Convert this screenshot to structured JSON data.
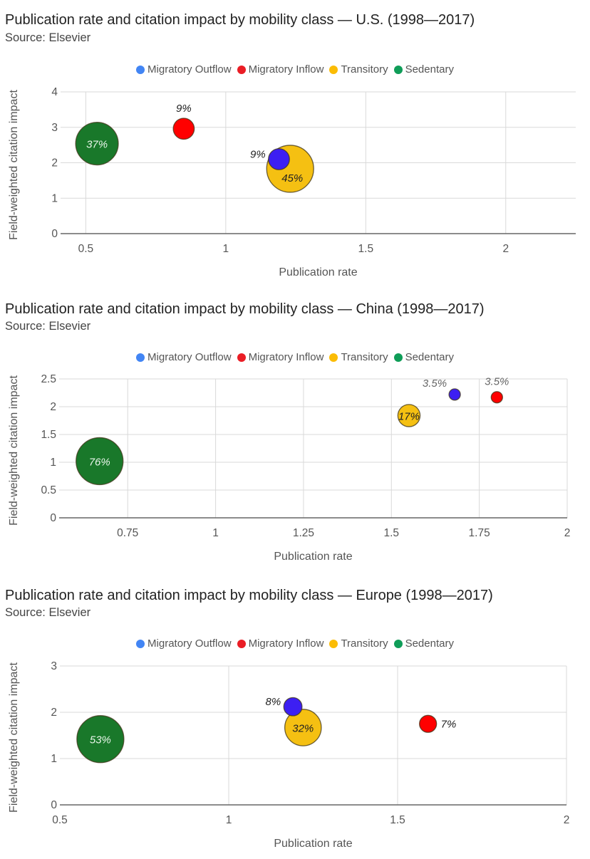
{
  "legend_colors": {
    "Migratory Outflow": "#4285f4",
    "Migratory Inflow": "#ea1d25",
    "Transitory": "#fbbc04",
    "Sedentary": "#0f9d58"
  },
  "bubble_colors": {
    "Migratory Outflow": "#3d1ff2",
    "Migratory Inflow": "#ff0000",
    "Transitory": "#f5c012",
    "Sedentary": "#19782a"
  },
  "chart_data": [
    {
      "type": "scatter",
      "subtype": "bubble",
      "title": "Publication rate and citation impact by mobility class — U.S. (1998—2017)",
      "subtitle": "Source: Elsevier",
      "xlabel": "Publication rate",
      "ylabel": "Field-weighted citation impact",
      "legend": [
        "Migratory Outflow",
        "Migratory Inflow",
        "Transitory",
        "Sedentary"
      ],
      "legend_position": "top",
      "grid": true,
      "xlim": [
        0.41,
        2.25
      ],
      "ylim": [
        0,
        4
      ],
      "xticks": [
        0.5,
        1,
        1.5,
        2
      ],
      "xtick_labels": [
        "0.5",
        "1",
        "1.5",
        "2"
      ],
      "yticks": [
        0,
        1,
        2,
        3,
        4
      ],
      "ytick_labels": [
        "0",
        "1",
        "2",
        "3",
        "4"
      ],
      "series": [
        {
          "name": "Sedentary",
          "x": 0.54,
          "y": 2.54,
          "share": 37,
          "label": "37%",
          "label_pos": "center",
          "label_color": "#e8f5e9"
        },
        {
          "name": "Migratory Inflow",
          "x": 0.85,
          "y": 2.96,
          "share": 9,
          "label": "9%",
          "label_pos": "top",
          "label_color": "#222222"
        },
        {
          "name": "Transitory",
          "x": 1.23,
          "y": 1.83,
          "share": 45,
          "label": "45%",
          "label_pos": "center-low",
          "label_color": "#222222"
        },
        {
          "name": "Migratory Outflow",
          "x": 1.19,
          "y": 2.1,
          "share": 9,
          "label": "9%",
          "label_pos": "left",
          "label_color": "#222222"
        }
      ]
    },
    {
      "type": "scatter",
      "subtype": "bubble",
      "title": "Publication rate and citation impact by mobility class — China (1998—2017)",
      "subtitle": "Source: Elsevier",
      "xlabel": "Publication rate",
      "ylabel": "Field-weighted citation impact",
      "legend": [
        "Migratory Outflow",
        "Migratory Inflow",
        "Transitory",
        "Sedentary"
      ],
      "legend_position": "top",
      "grid": true,
      "xlim": [
        0.555,
        2.0
      ],
      "ylim": [
        0,
        2.5
      ],
      "xticks": [
        0.75,
        1,
        1.25,
        1.5,
        1.75,
        2
      ],
      "xtick_labels": [
        "0.75",
        "1",
        "1.25",
        "1.5",
        "1.75",
        "2"
      ],
      "yticks": [
        0,
        0.5,
        1,
        1.5,
        2,
        2.5
      ],
      "ytick_labels": [
        "0",
        "0.5",
        "1",
        "1.5",
        "2",
        "2.5"
      ],
      "series": [
        {
          "name": "Sedentary",
          "x": 0.67,
          "y": 1.02,
          "share": 76,
          "label": "76%",
          "label_pos": "center",
          "label_color": "#e8f5e9"
        },
        {
          "name": "Transitory",
          "x": 1.55,
          "y": 1.84,
          "share": 17,
          "label": "17%",
          "label_pos": "center",
          "label_color": "#222222"
        },
        {
          "name": "Migratory Outflow",
          "x": 1.68,
          "y": 2.22,
          "share": 3.5,
          "label": "3.5%",
          "label_pos": "top-left",
          "label_color": "#666666"
        },
        {
          "name": "Migratory Inflow",
          "x": 1.8,
          "y": 2.17,
          "share": 3.5,
          "label": "3.5%",
          "label_pos": "top",
          "label_color": "#666666"
        }
      ]
    },
    {
      "type": "scatter",
      "subtype": "bubble",
      "title": "Publication rate and citation impact by mobility class — Europe (1998—2017)",
      "subtitle": "Source: Elsevier",
      "xlabel": "Publication rate",
      "ylabel": "Field-weighted citation impact",
      "legend": [
        "Migratory Outflow",
        "Migratory Inflow",
        "Transitory",
        "Sedentary"
      ],
      "legend_position": "top",
      "grid": true,
      "xlim": [
        0.5,
        2.0
      ],
      "ylim": [
        0,
        3
      ],
      "xticks": [
        0.5,
        1,
        1.5,
        2
      ],
      "xtick_labels": [
        "0.5",
        "1",
        "1.5",
        "2"
      ],
      "yticks": [
        0,
        1,
        2,
        3
      ],
      "ytick_labels": [
        "0",
        "1",
        "2",
        "3"
      ],
      "series": [
        {
          "name": "Sedentary",
          "x": 0.62,
          "y": 1.42,
          "share": 53,
          "label": "53%",
          "label_pos": "center",
          "label_color": "#e8f5e9"
        },
        {
          "name": "Transitory",
          "x": 1.22,
          "y": 1.67,
          "share": 32,
          "label": "32%",
          "label_pos": "center",
          "label_color": "#222222"
        },
        {
          "name": "Migratory Outflow",
          "x": 1.19,
          "y": 2.12,
          "share": 8,
          "label": "8%",
          "label_pos": "left",
          "label_color": "#222222"
        },
        {
          "name": "Migratory Inflow",
          "x": 1.59,
          "y": 1.75,
          "share": 7,
          "label": "7%",
          "label_pos": "right",
          "label_color": "#222222"
        }
      ]
    }
  ]
}
